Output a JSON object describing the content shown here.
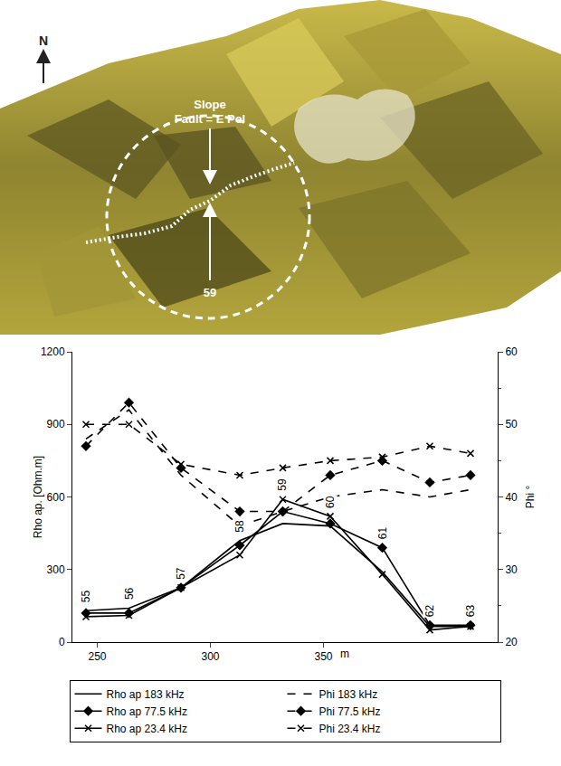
{
  "chart_data": {
    "type": "line",
    "x": [
      245,
      264,
      287,
      313,
      332,
      353,
      376,
      397,
      415
    ],
    "point_labels": [
      "55",
      "56",
      "57",
      "58",
      "59",
      "60",
      "61",
      "62",
      "63"
    ],
    "x_label": "m",
    "y_label": "Rho ap. [Ohm.m]",
    "y2_label": "Phi °",
    "xlim": [
      239,
      427
    ],
    "xticks": [
      250,
      300,
      350
    ],
    "ylim": [
      0,
      1200
    ],
    "yticks": [
      0,
      300,
      600,
      900,
      1200
    ],
    "y2lim": [
      20,
      60
    ],
    "y2ticks": [
      20,
      30,
      40,
      50,
      60
    ],
    "grid": false,
    "legend": "bottom",
    "series": [
      {
        "name": "Rho ap 183 kHz",
        "color": "#000000",
        "marker": "none",
        "line_style": "solid",
        "values": [
          130,
          140,
          225,
          420,
          490,
          480,
          290,
          65,
          65
        ]
      },
      {
        "name": "Phi 183 kHz",
        "axis": "y2",
        "color": "#000000",
        "marker": "none",
        "line_style": "dash",
        "values": [
          48,
          52,
          43,
          36,
          38,
          40,
          41,
          40,
          41
        ]
      },
      {
        "name": "Rho ap 77.5 kHz",
        "color": "#000000",
        "marker": "diamond",
        "line_style": "solid",
        "values": [
          120,
          120,
          225,
          400,
          540,
          490,
          390,
          70,
          70
        ]
      },
      {
        "name": "Phi 77.5 kHz",
        "axis": "y2",
        "color": "#000000",
        "marker": "diamond",
        "line_style": "dash",
        "values": [
          47,
          53,
          44,
          38,
          38,
          43,
          45,
          42,
          43
        ]
      },
      {
        "name": "Rho ap 23.4 kHz",
        "color": "#000000",
        "marker": "x",
        "line_style": "solid",
        "values": [
          105,
          110,
          225,
          360,
          590,
          520,
          280,
          50,
          65
        ]
      },
      {
        "name": "Phi 23.4 kHz",
        "axis": "y2",
        "color": "#000000",
        "marker": "x",
        "line_style": "dash",
        "values": [
          50,
          50,
          44.5,
          43,
          44,
          45,
          45.5,
          47,
          46
        ]
      }
    ]
  },
  "map": {
    "north": "N",
    "slope_label": "Slope",
    "fault_label": "Fault = E Pol",
    "station_label": "59"
  }
}
